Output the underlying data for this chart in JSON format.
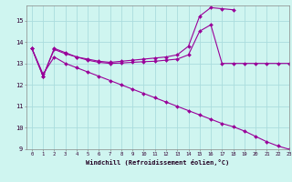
{
  "xlabel": "Windchill (Refroidissement éolien,°C)",
  "background_color": "#cff5f0",
  "grid_color": "#aadddd",
  "line_color": "#990099",
  "xlim": [
    -0.5,
    23
  ],
  "ylim": [
    9,
    15.7
  ],
  "yticks": [
    9,
    10,
    11,
    12,
    13,
    14,
    15
  ],
  "xticks": [
    0,
    1,
    2,
    3,
    4,
    5,
    6,
    7,
    8,
    9,
    10,
    11,
    12,
    13,
    14,
    15,
    16,
    17,
    18,
    19,
    20,
    21,
    22,
    23
  ],
  "series": [
    {
      "x": [
        0,
        1,
        2,
        3,
        4,
        5,
        6,
        7,
        8,
        9,
        10,
        11,
        12,
        13,
        14,
        15,
        16,
        17,
        18,
        19,
        20,
        21,
        22,
        23
      ],
      "y": [
        13.7,
        12.4,
        13.7,
        13.5,
        13.3,
        13.2,
        13.1,
        13.05,
        13.1,
        13.15,
        13.2,
        13.25,
        13.3,
        13.4,
        13.8,
        15.2,
        15.6,
        15.55,
        15.5,
        null,
        null,
        null,
        null,
        null
      ],
      "marker": "D",
      "markersize": 2.0
    },
    {
      "x": [
        0,
        1,
        2,
        3,
        4,
        5,
        6,
        7,
        8,
        9,
        10,
        11,
        12,
        13,
        14,
        15,
        16,
        17,
        18,
        19,
        20,
        21,
        22,
        23
      ],
      "y": [
        13.7,
        12.4,
        13.65,
        13.45,
        13.3,
        13.15,
        13.05,
        13.0,
        13.02,
        13.05,
        13.08,
        13.1,
        13.15,
        13.2,
        13.4,
        14.5,
        14.8,
        13.0,
        13.0,
        13.0,
        13.0,
        13.0,
        13.0,
        13.0
      ],
      "marker": "D",
      "markersize": 2.0
    },
    {
      "x": [
        0,
        1,
        2,
        3,
        4,
        5,
        6,
        7,
        8,
        9,
        10,
        11,
        12,
        13,
        14,
        15,
        16,
        17,
        18,
        19,
        20,
        21,
        22,
        23
      ],
      "y": [
        13.7,
        12.5,
        13.3,
        13.0,
        12.8,
        12.6,
        12.4,
        12.2,
        12.0,
        11.8,
        11.6,
        11.4,
        11.2,
        11.0,
        10.8,
        10.6,
        10.4,
        10.2,
        10.05,
        9.85,
        9.6,
        9.35,
        9.15,
        9.0
      ],
      "marker": "D",
      "markersize": 2.0
    }
  ]
}
